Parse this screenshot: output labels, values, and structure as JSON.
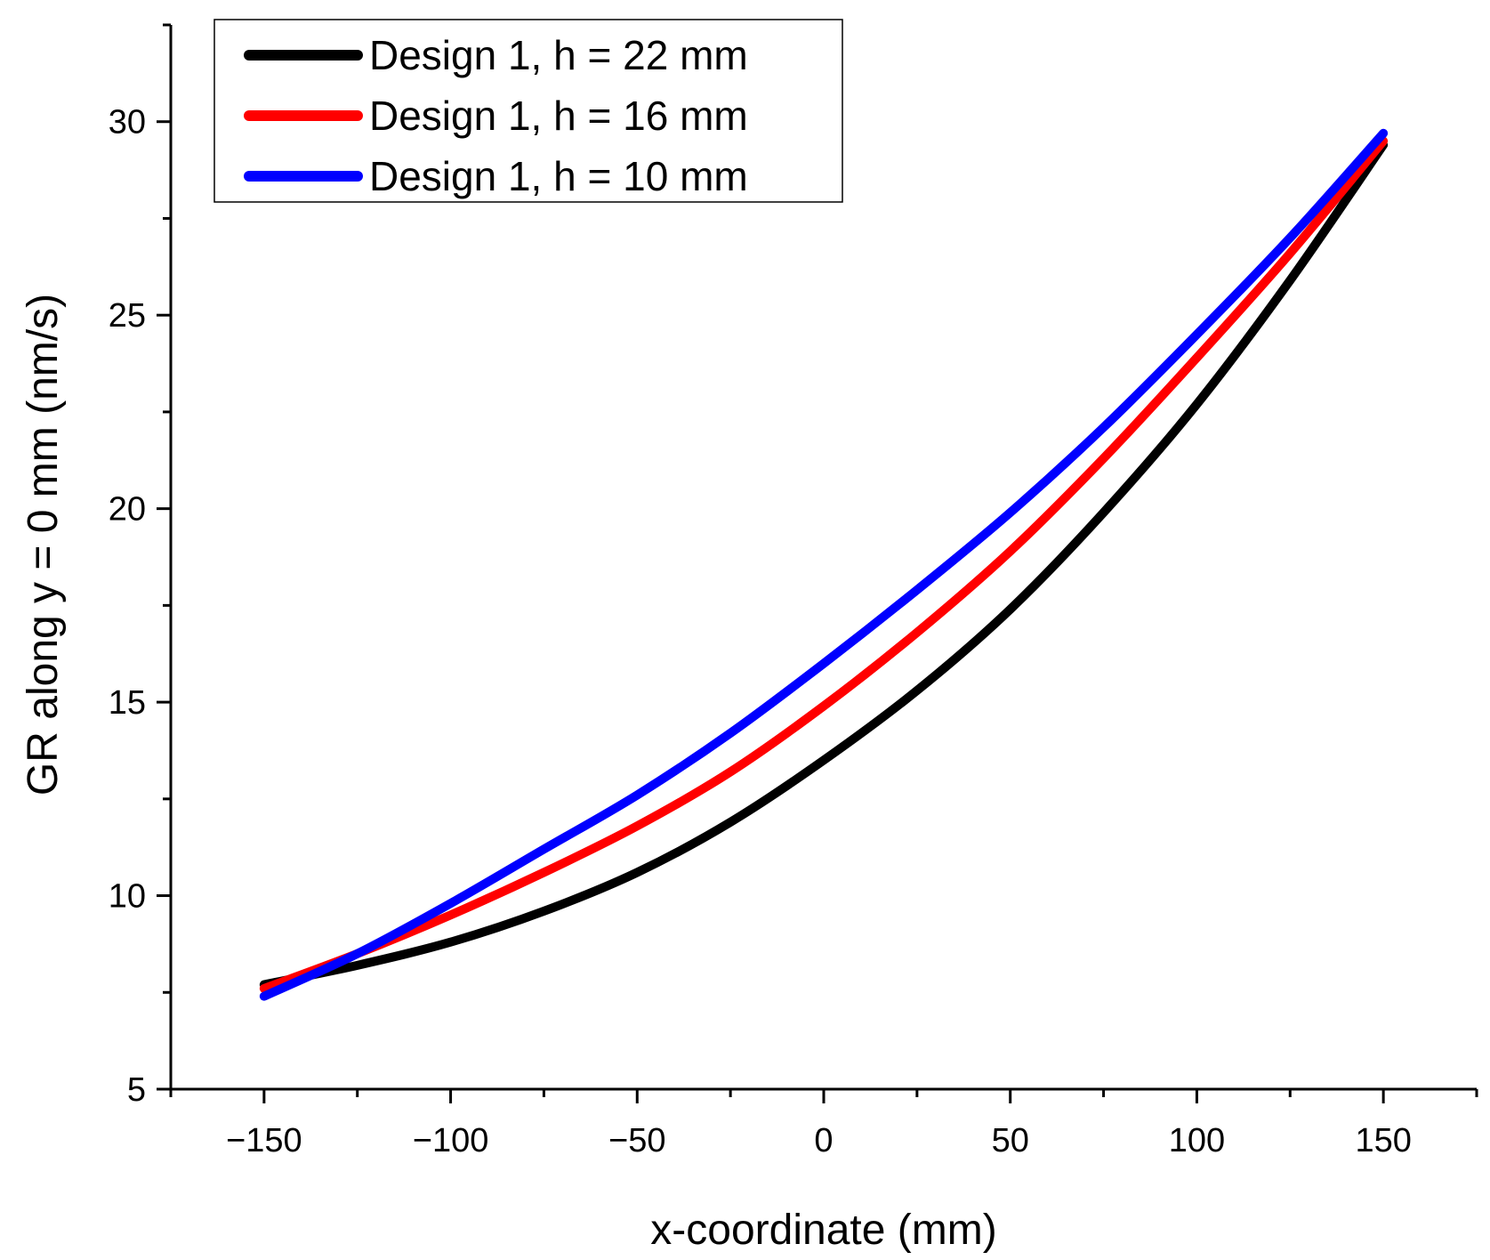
{
  "chart_data": {
    "type": "line",
    "title": "",
    "xlabel": "x-coordinate (mm)",
    "ylabel": "GR along y = 0 mm (nm/s)",
    "xlim": [
      -175,
      175
    ],
    "ylim": [
      5,
      32.5
    ],
    "grid": false,
    "legend_position": "top-left",
    "x_ticks": [
      -150,
      -100,
      -50,
      0,
      50,
      100,
      150
    ],
    "x_tick_labels": [
      "−150",
      "−100",
      "−50",
      "0",
      "50",
      "100",
      "150"
    ],
    "x_minor_ticks": [
      -175,
      -125,
      -75,
      -25,
      25,
      75,
      125,
      175
    ],
    "y_ticks": [
      5,
      10,
      15,
      20,
      25,
      30
    ],
    "y_tick_labels": [
      "5",
      "10",
      "15",
      "20",
      "25",
      "30"
    ],
    "y_minor_ticks": [
      7.5,
      12.5,
      17.5,
      22.5,
      27.5,
      32.5
    ],
    "x": [
      -150,
      -125,
      -100,
      -75,
      -50,
      -25,
      0,
      25,
      50,
      75,
      100,
      125,
      150
    ],
    "series": [
      {
        "name": "Design 1, h = 22 mm",
        "color": "#000000",
        "values": [
          7.7,
          8.2,
          8.8,
          9.6,
          10.6,
          11.9,
          13.5,
          15.3,
          17.4,
          19.9,
          22.7,
          25.9,
          29.4
        ]
      },
      {
        "name": "Design 1, h = 16 mm",
        "color": "#ff0000",
        "values": [
          7.6,
          8.5,
          9.5,
          10.6,
          11.8,
          13.2,
          14.9,
          16.8,
          18.9,
          21.3,
          23.9,
          26.6,
          29.5
        ]
      },
      {
        "name": "Design 1, h = 10 mm",
        "color": "#0000ff",
        "values": [
          7.4,
          8.5,
          9.8,
          11.2,
          12.6,
          14.2,
          16.0,
          17.9,
          19.9,
          22.1,
          24.5,
          27.0,
          29.7
        ]
      }
    ]
  }
}
